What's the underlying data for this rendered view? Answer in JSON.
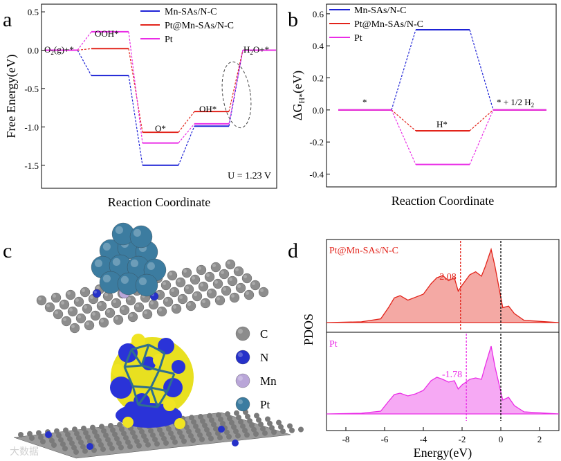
{
  "chart_data": [
    {
      "panel": "a",
      "type": "line",
      "ylabel": "Free Energy(eV)",
      "xlabel": "Reaction Coordinate",
      "ylim": [
        -1.8,
        0.6
      ],
      "yticks": [
        "0.5",
        "0.0",
        "-0.5",
        "-1.0",
        "-1.5"
      ],
      "yticks_values": [
        0.5,
        0.0,
        -0.5,
        -1.0,
        -1.5
      ],
      "step_labels": [
        "O2(g)+*",
        "OOH*",
        "O*",
        "OH*",
        "H2O+*"
      ],
      "annotation": "U = 1.23 V",
      "series": [
        {
          "name": "Mn-SAs/N-C",
          "color": "#1d22d6",
          "values": [
            0.0,
            -0.33,
            -1.5,
            -0.99,
            0.0
          ]
        },
        {
          "name": "Pt@Mn-SAs/N-C",
          "color": "#e2231a",
          "values": [
            0.0,
            0.02,
            -1.07,
            -0.8,
            0.0
          ]
        },
        {
          "name": "Pt",
          "color": "#ea2ce6",
          "values": [
            0.0,
            0.24,
            -1.21,
            -0.96,
            0.0
          ]
        }
      ]
    },
    {
      "panel": "b",
      "type": "line",
      "ylabel": "ΔGH*(eV)",
      "xlabel": "Reaction Coordinate",
      "ylim": [
        -0.48,
        0.66
      ],
      "yticks": [
        "0.6",
        "0.4",
        "0.2",
        "0.0",
        "-0.2",
        "-0.4"
      ],
      "yticks_values": [
        0.6,
        0.4,
        0.2,
        0.0,
        -0.2,
        -0.4
      ],
      "step_labels": [
        "*",
        "H*",
        "* + 1/2 H2"
      ],
      "series": [
        {
          "name": "Mn-SAs/N-C",
          "color": "#1d22d6",
          "values": [
            0.0,
            0.5,
            0.0
          ]
        },
        {
          "name": "Pt@Mn-SAs/N-C",
          "color": "#e2231a",
          "values": [
            0.0,
            -0.13,
            0.0
          ]
        },
        {
          "name": "Pt",
          "color": "#ea2ce6",
          "values": [
            0.0,
            -0.34,
            0.0
          ]
        }
      ]
    },
    {
      "panel": "d",
      "type": "area",
      "ylabel": "PDOS",
      "xlabel": "Energy(eV)",
      "xlim": [
        -9,
        3
      ],
      "xticks": [
        "-8",
        "-6",
        "-4",
        "-2",
        "0",
        "2"
      ],
      "xticks_values": [
        -8,
        -6,
        -4,
        -2,
        0,
        2
      ],
      "fermi_level": 0,
      "series": [
        {
          "name": "Pt@Mn-SAs/N-C",
          "color": "#e2231a",
          "band_center": -2.08,
          "band_center_label": "-2.08",
          "x": [
            -9,
            -7.2,
            -6.2,
            -5.8,
            -5.5,
            -5.2,
            -4.8,
            -4.4,
            -4.0,
            -3.6,
            -3.3,
            -3.0,
            -2.7,
            -2.4,
            -2.2,
            -2.0,
            -1.6,
            -1.3,
            -1.0,
            -0.8,
            -0.5,
            -0.3,
            0.1,
            0.4,
            0.7,
            1.2,
            3
          ],
          "y": [
            0.0,
            0.01,
            0.05,
            0.2,
            0.33,
            0.36,
            0.3,
            0.34,
            0.38,
            0.52,
            0.6,
            0.63,
            0.56,
            0.6,
            0.42,
            0.5,
            0.64,
            0.68,
            0.62,
            0.75,
            0.98,
            0.75,
            0.2,
            0.22,
            0.12,
            0.03,
            0.0
          ]
        },
        {
          "name": "Pt",
          "color": "#ea2ce6",
          "band_center": -1.78,
          "band_center_label": "-1.78",
          "x": [
            -9,
            -7.2,
            -6.2,
            -5.8,
            -5.5,
            -5.2,
            -4.8,
            -4.4,
            -4.0,
            -3.6,
            -3.3,
            -3.0,
            -2.7,
            -2.4,
            -2.2,
            -2.0,
            -1.6,
            -1.3,
            -1.0,
            -0.8,
            -0.5,
            -0.3,
            0.1,
            0.4,
            0.7,
            1.2,
            3
          ],
          "y": [
            0.0,
            0.01,
            0.04,
            0.18,
            0.28,
            0.3,
            0.26,
            0.29,
            0.34,
            0.48,
            0.53,
            0.5,
            0.46,
            0.48,
            0.36,
            0.42,
            0.5,
            0.52,
            0.5,
            0.7,
            0.98,
            0.68,
            0.2,
            0.24,
            0.12,
            0.03,
            0.0
          ]
        }
      ]
    }
  ],
  "panel_labels": {
    "a": "a",
    "b": "b",
    "c": "c",
    "d": "d"
  },
  "legend_c": [
    {
      "label": "C",
      "color": "#8c8c8c"
    },
    {
      "label": "N",
      "color": "#2631c9"
    },
    {
      "label": "Mn",
      "color": "#b9a6d8"
    },
    {
      "label": "Pt",
      "color": "#3c7ca0"
    }
  ],
  "watermark": "大数据"
}
